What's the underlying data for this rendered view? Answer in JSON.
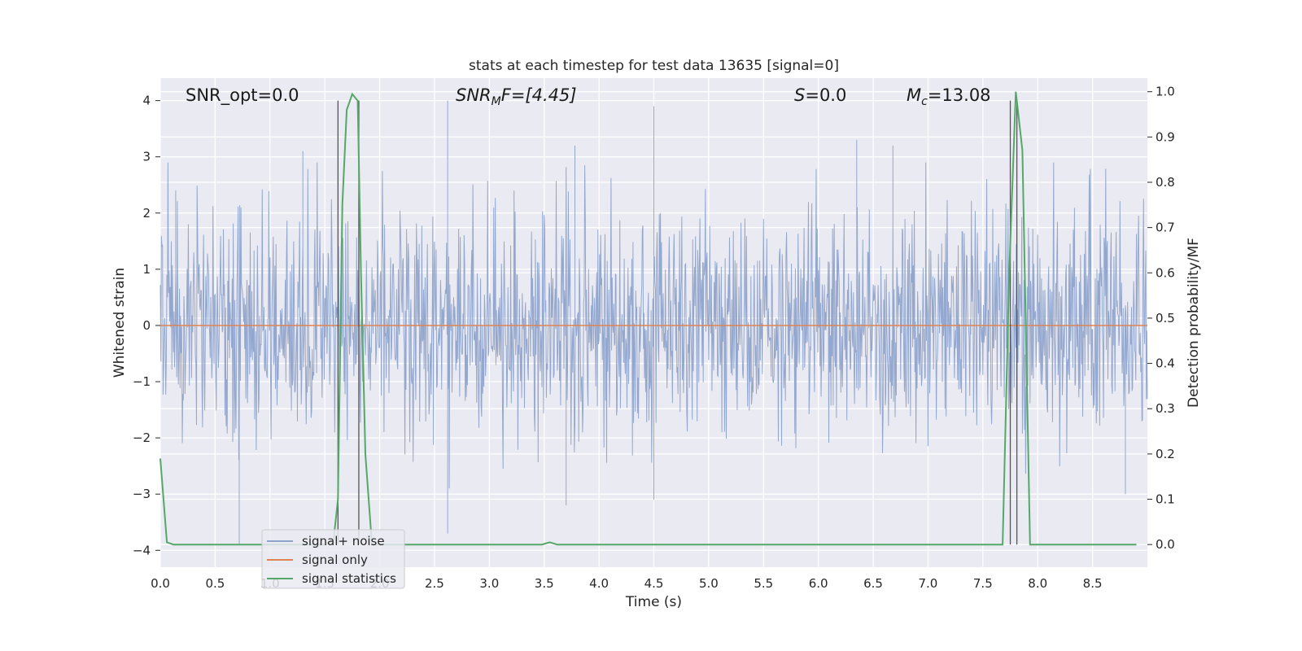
{
  "chart_data": {
    "type": "line",
    "title": "stats at each timestep for test data 13635 [signal=0]",
    "xlabel": "Time (s)",
    "ylabel_left": "Whitened strain",
    "ylabel_right": "Detection probability/MF",
    "xlim": [
      0.0,
      9.0
    ],
    "ylim_left": [
      -4.3,
      4.4
    ],
    "ylim_right": [
      -0.05,
      1.03
    ],
    "xticks": [
      "0.0",
      "0.5",
      "1.0",
      "1.5",
      "2.0",
      "2.5",
      "3.0",
      "3.5",
      "4.0",
      "4.5",
      "5.0",
      "5.5",
      "6.0",
      "6.5",
      "7.0",
      "7.5",
      "8.0",
      "8.5"
    ],
    "yticks_left": [
      "−4",
      "−3",
      "−2",
      "−1",
      "0",
      "1",
      "2",
      "3",
      "4"
    ],
    "yticks_right": [
      "0.0",
      "0.1",
      "0.2",
      "0.3",
      "0.4",
      "0.5",
      "0.6",
      "0.7",
      "0.8",
      "0.9",
      "1.0"
    ],
    "grid": true,
    "legend_position": "lower-left",
    "annotations": {
      "snr_opt": "SNR_opt=0.0",
      "snr_mf_main": "SNR",
      "snr_mf_sub": "M",
      "snr_mf_tail": "F=[4.45]",
      "s_main": "S",
      "s_tail": "=0.0",
      "mc_main": "M",
      "mc_sub": "c",
      "mc_tail": "=13.08"
    },
    "vertical_lines_x": [
      1.62,
      1.81,
      7.75,
      7.81
    ],
    "series": [
      {
        "name": "signal+ noise",
        "color": "#8fa4cc",
        "axis": "left",
        "description_of_values": "whitened strain noise fluctuating roughly between -4 and 4 around 0",
        "peak_values": [
          {
            "x": 0.14,
            "y": 2.4
          },
          {
            "x": 0.72,
            "y": -3.9
          },
          {
            "x": 1.3,
            "y": 3.1
          },
          {
            "x": 2.62,
            "y": 4.0
          },
          {
            "x": 2.62,
            "y": -3.7
          },
          {
            "x": 3.78,
            "y": 3.2
          },
          {
            "x": 3.7,
            "y": -3.2
          },
          {
            "x": 4.5,
            "y": 3.9
          },
          {
            "x": 4.5,
            "y": -3.1
          },
          {
            "x": 6.35,
            "y": 3.3
          },
          {
            "x": 6.68,
            "y": 3.2
          },
          {
            "x": 8.8,
            "y": -3.0
          }
        ]
      },
      {
        "name": "signal only",
        "color": "#dd8452",
        "axis": "left",
        "values_description": "flat line at 0",
        "x": [
          0.0,
          9.0
        ],
        "y": [
          0.0,
          0.0
        ]
      },
      {
        "name": "signal statistics",
        "color": "#55a868",
        "axis": "right",
        "x": [
          0.0,
          0.06,
          0.12,
          0.2,
          1.5,
          1.58,
          1.62,
          1.66,
          1.7,
          1.75,
          1.8,
          1.83,
          1.87,
          1.93,
          2.0,
          3.48,
          3.55,
          3.62,
          3.7,
          7.68,
          7.74,
          7.8,
          7.86,
          7.93,
          8.1,
          8.5,
          8.9
        ],
        "y": [
          0.19,
          0.005,
          0.0,
          0.0,
          0.0,
          0.01,
          0.1,
          0.75,
          0.96,
          0.995,
          0.98,
          0.6,
          0.2,
          0.0,
          0.0,
          0.0,
          0.005,
          0.0,
          0.0,
          0.0,
          0.6,
          1.0,
          0.87,
          0.0,
          0.0,
          0.0,
          0.0
        ]
      }
    ]
  }
}
